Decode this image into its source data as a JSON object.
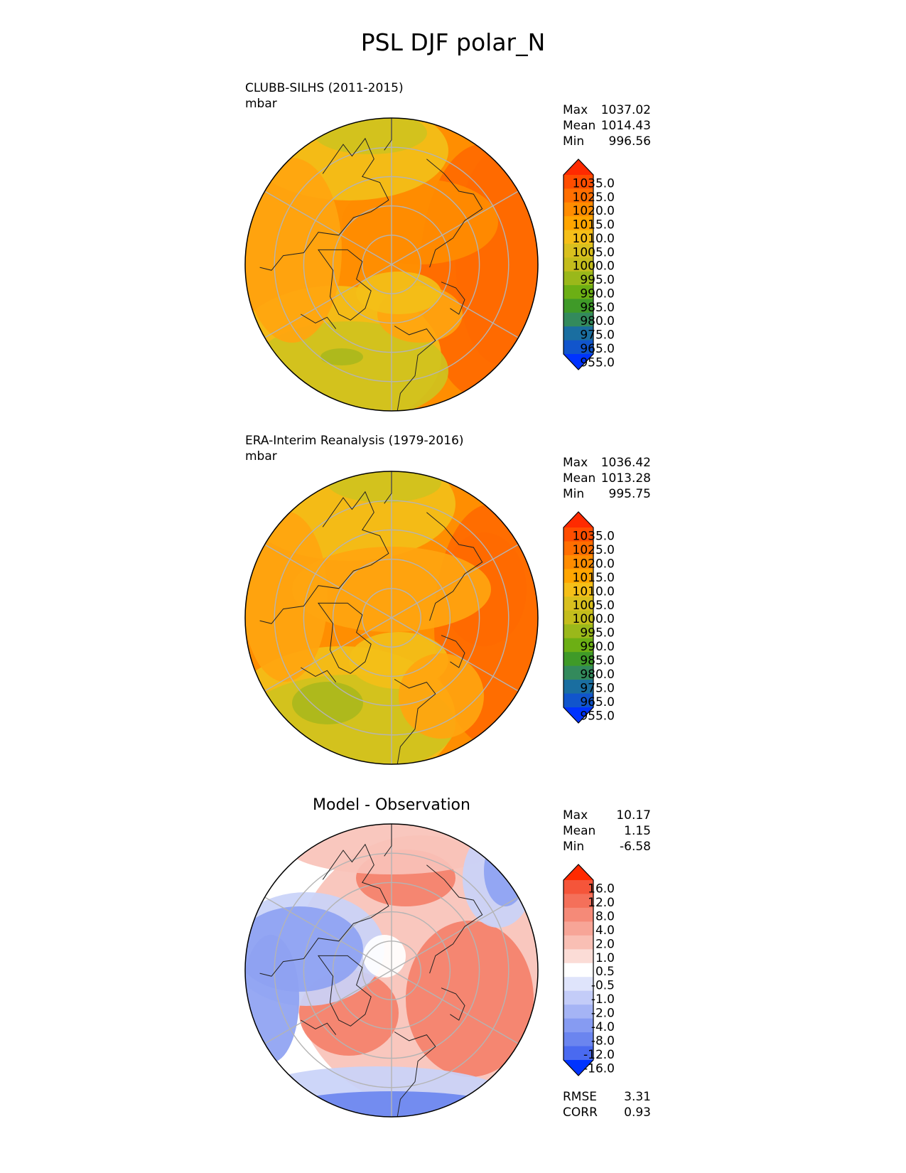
{
  "title": "PSL DJF polar_N",
  "chart_data": [
    {
      "type": "heatmap",
      "title": "CLUBB-SILHS (2011-2015)",
      "units": "mbar",
      "stats": [
        {
          "label": "Max",
          "value": "1037.02"
        },
        {
          "label": "Mean",
          "value": "1014.43"
        },
        {
          "label": "Min",
          "value": "996.56"
        }
      ],
      "colorbar": {
        "labels": [
          "1035.0",
          "1025.0",
          "1020.0",
          "1015.0",
          "1010.0",
          "1005.0",
          "1000.0",
          "995.0",
          "990.0",
          "985.0",
          "980.0",
          "975.0",
          "965.0",
          "955.0"
        ],
        "colors": [
          "#ff2a00",
          "#ff4d00",
          "#ff6e00",
          "#ff8c00",
          "#ffa500",
          "#f5bf18",
          "#d9c01e",
          "#c4bd1c",
          "#9ab81a",
          "#6caf14",
          "#3f9a28",
          "#338a5c",
          "#1a6ea0",
          "#1155cc",
          "#0033ff"
        ]
      },
      "map": {
        "field_colors": {
          "base": "#ffa50f",
          "warm": "#ff8c00",
          "hot": "#ff6a00",
          "yellow": "#f3bf18",
          "olive": "#cfc21e",
          "green": "#aab91c"
        }
      }
    },
    {
      "type": "heatmap",
      "title": "ERA-Interim Reanalysis (1979-2016)",
      "units": "mbar",
      "stats": [
        {
          "label": "Max",
          "value": "1036.42"
        },
        {
          "label": "Mean",
          "value": "1013.28"
        },
        {
          "label": "Min",
          "value": "995.75"
        }
      ],
      "colorbar": {
        "labels": [
          "1035.0",
          "1025.0",
          "1020.0",
          "1015.0",
          "1010.0",
          "1005.0",
          "1000.0",
          "995.0",
          "990.0",
          "985.0",
          "980.0",
          "975.0",
          "965.0",
          "955.0"
        ],
        "colors": [
          "#ff2a00",
          "#ff4d00",
          "#ff6e00",
          "#ff8c00",
          "#ffa500",
          "#f5bf18",
          "#d9c01e",
          "#c4bd1c",
          "#9ab81a",
          "#6caf14",
          "#3f9a28",
          "#338a5c",
          "#1a6ea0",
          "#1155cc",
          "#0033ff"
        ]
      },
      "map": {
        "field_colors": {
          "base": "#ffa50f",
          "warm": "#ff8c00",
          "hot": "#ff6a00",
          "yellow": "#f3bf18",
          "olive": "#cfc21e",
          "green": "#aab91c"
        }
      }
    },
    {
      "type": "heatmap",
      "title": "Model - Observation",
      "stats": [
        {
          "label": "Max",
          "value": "10.17"
        },
        {
          "label": "Mean",
          "value": "1.15"
        },
        {
          "label": "Min",
          "value": "-6.58"
        }
      ],
      "colorbar": {
        "labels": [
          "16.0",
          "12.0",
          "8.0",
          "4.0",
          "2.0",
          "1.0",
          "0.5",
          "-0.5",
          "-1.0",
          "-2.0",
          "-4.0",
          "-8.0",
          "-12.0",
          "-16.0"
        ],
        "colors": [
          "#ff2a00",
          "#f5553a",
          "#f4705a",
          "#f58a78",
          "#f7a597",
          "#f9bfb4",
          "#fbdcd6",
          "#ffffff",
          "#dfe4fb",
          "#c3ccf8",
          "#a5b4f5",
          "#869bf2",
          "#6b85ef",
          "#4a6af0",
          "#0033ff"
        ]
      },
      "extra_stats": [
        {
          "label": "RMSE",
          "value": "3.31"
        },
        {
          "label": "CORR",
          "value": "0.93"
        }
      ],
      "map": {
        "field_colors": {
          "white": "#ffffff",
          "pink": "#f9c2b8",
          "red": "#f4806a",
          "lightblue": "#c9d2f8",
          "blue": "#8ea2f2",
          "deepblue": "#6b85ef"
        }
      }
    }
  ]
}
